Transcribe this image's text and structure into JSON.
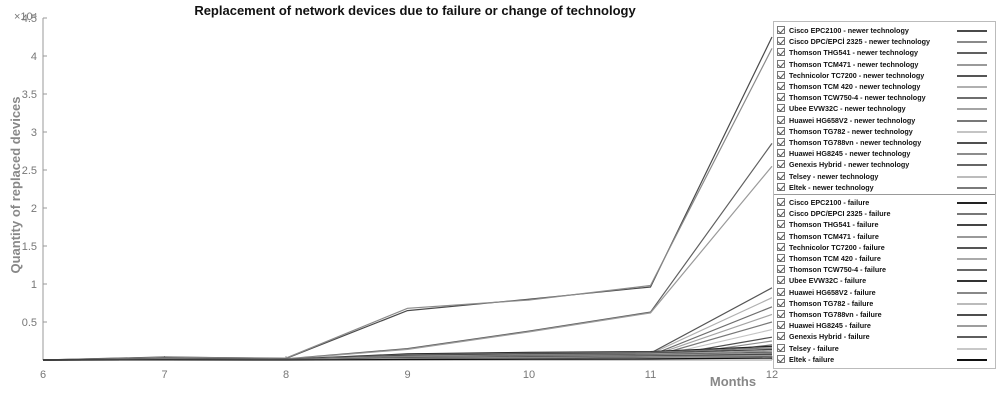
{
  "chart_data": {
    "type": "line",
    "title": "Replacement of network devices due to failure or change of technology",
    "xlabel": "Months",
    "ylabel": "Quantity of replaced devices",
    "x": [
      6,
      7,
      8,
      9,
      10,
      11,
      12
    ],
    "xlim": [
      6,
      12
    ],
    "ylim": [
      0,
      45000
    ],
    "y_ticks": [
      0,
      5000,
      10000,
      15000,
      20000,
      25000,
      30000,
      35000,
      40000,
      45000
    ],
    "y_tick_labels": [
      "",
      "0.5",
      "1",
      "1.5",
      "2",
      "2.5",
      "3",
      "3.5",
      "4",
      "4.5"
    ],
    "y_exponent_label": "×10⁴",
    "legend_position": "right",
    "grid": false,
    "series": [
      {
        "name": "Cisco EPC2100  -  newer technology",
        "color": "#4a4a4a",
        "values": [
          0,
          400,
          200,
          6500,
          8000,
          9600,
          42500
        ]
      },
      {
        "name": "Cisco DPC/EPCİ 2325  -  newer technology",
        "color": "#8a8a8a",
        "values": [
          0,
          350,
          250,
          6800,
          7900,
          9800,
          41000
        ]
      },
      {
        "name": "Thomson THG541  -  newer technology",
        "color": "#606060",
        "values": [
          0,
          300,
          150,
          1500,
          3800,
          6300,
          28500
        ]
      },
      {
        "name": "Thomson TCM471  -  newer technology",
        "color": "#9a9a9a",
        "values": [
          0,
          250,
          120,
          1400,
          3700,
          6200,
          25500
        ]
      },
      {
        "name": "Technicolor TC7200  -  newer technology",
        "color": "#555555",
        "values": [
          0,
          200,
          100,
          500,
          800,
          900,
          9500
        ]
      },
      {
        "name": "Thomson TCM 420  -  newer technology",
        "color": "#b0b0b0",
        "values": [
          0,
          150,
          80,
          400,
          700,
          800,
          8200
        ]
      },
      {
        "name": "Thomson TCW750-4  -  newer technology",
        "color": "#6e6e6e",
        "values": [
          0,
          120,
          60,
          300,
          500,
          600,
          7000
        ]
      },
      {
        "name": "Ubee EVW32C  -  newer technology",
        "color": "#a4a4a4",
        "values": [
          0,
          100,
          50,
          250,
          400,
          500,
          6000
        ]
      },
      {
        "name": "Huawei HG658V2  -  newer technology",
        "color": "#787878",
        "values": [
          0,
          90,
          40,
          200,
          300,
          400,
          5000
        ]
      },
      {
        "name": "Thomson TG782  -  newer technology",
        "color": "#c4c4c4",
        "values": [
          0,
          80,
          30,
          150,
          250,
          300,
          4000
        ]
      },
      {
        "name": "Thomson TG788vn  -  newer technology",
        "color": "#505050",
        "values": [
          0,
          70,
          25,
          120,
          200,
          250,
          3000
        ]
      },
      {
        "name": "Huawei HG8245  -  newer technology",
        "color": "#8c8c8c",
        "values": [
          0,
          60,
          20,
          100,
          150,
          200,
          2500
        ]
      },
      {
        "name": "Genexis Hybrid  -  newer technology",
        "color": "#666666",
        "values": [
          0,
          50,
          15,
          80,
          120,
          150,
          2000
        ]
      },
      {
        "name": "Telsey  -  newer technology",
        "color": "#bcbcbc",
        "values": [
          0,
          40,
          10,
          60,
          100,
          120,
          1500
        ]
      },
      {
        "name": "Eltek  -  newer technology",
        "color": "#7a7a7a",
        "values": [
          0,
          30,
          8,
          50,
          80,
          100,
          1200
        ]
      },
      {
        "name": "Cisco EPC2100  -  failure",
        "color": "#222222",
        "values": [
          0,
          200,
          100,
          800,
          1000,
          1100,
          1800
        ]
      },
      {
        "name": "Cisco DPC/EPCI 2325  -  failure",
        "color": "#777777",
        "values": [
          0,
          180,
          90,
          700,
          900,
          1000,
          1600
        ]
      },
      {
        "name": "Thomson THG541  -  failure",
        "color": "#444444",
        "values": [
          0,
          160,
          80,
          600,
          800,
          900,
          1400
        ]
      },
      {
        "name": "Thomson TCM471  -  failure",
        "color": "#999999",
        "values": [
          0,
          140,
          70,
          500,
          700,
          800,
          1200
        ]
      },
      {
        "name": "Technicolor TC7200  -  failure",
        "color": "#555555",
        "values": [
          0,
          120,
          60,
          400,
          600,
          700,
          1000
        ]
      },
      {
        "name": "Thomson TCM 420  -  failure",
        "color": "#aaaaaa",
        "values": [
          0,
          100,
          50,
          350,
          500,
          600,
          900
        ]
      },
      {
        "name": "Thomson TCW750-4  -  failure",
        "color": "#666666",
        "values": [
          0,
          90,
          45,
          300,
          450,
          550,
          800
        ]
      },
      {
        "name": "Ubee EVW32C  -  failure",
        "color": "#333333",
        "values": [
          0,
          80,
          40,
          250,
          400,
          500,
          700
        ]
      },
      {
        "name": "Huawei HG658V2  -  failure",
        "color": "#888888",
        "values": [
          0,
          70,
          35,
          200,
          350,
          450,
          600
        ]
      },
      {
        "name": "Thomson TG782  -  failure",
        "color": "#bbbbbb",
        "values": [
          0,
          60,
          30,
          180,
          300,
          400,
          500
        ]
      },
      {
        "name": "Thomson TG788vn  -  failure",
        "color": "#4d4d4d",
        "values": [
          0,
          50,
          25,
          150,
          250,
          350,
          450
        ]
      },
      {
        "name": "Huawei HG8245  -  failure",
        "color": "#9d9d9d",
        "values": [
          0,
          40,
          20,
          120,
          200,
          300,
          400
        ]
      },
      {
        "name": "Genexis Hybrid  -  failure",
        "color": "#5e5e5e",
        "values": [
          0,
          30,
          15,
          100,
          150,
          250,
          350
        ]
      },
      {
        "name": "Telsey  -  failure",
        "color": "#c8c8c8",
        "values": [
          0,
          20,
          10,
          80,
          120,
          200,
          300
        ]
      },
      {
        "name": "Eltek  -  failure",
        "color": "#111111",
        "values": [
          0,
          10,
          5,
          60,
          100,
          150,
          250
        ]
      }
    ]
  }
}
